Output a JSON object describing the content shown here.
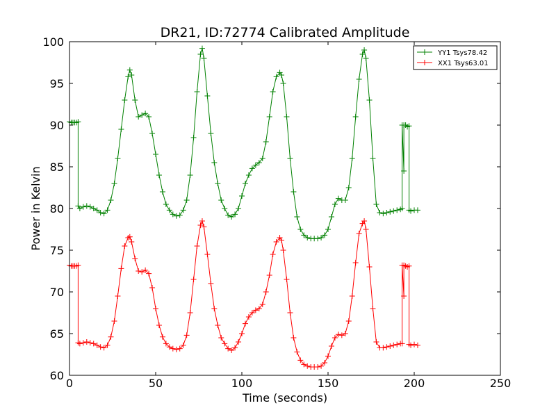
{
  "chart_data": {
    "type": "line",
    "title": "DR21, ID:72774 Calibrated Amplitude",
    "xlabel": "Time (seconds)",
    "ylabel": "Power in Kelvin",
    "xlim": [
      0,
      250
    ],
    "ylim": [
      60,
      100
    ],
    "xticks": [
      0,
      50,
      100,
      150,
      200,
      250
    ],
    "yticks": [
      60,
      65,
      70,
      75,
      80,
      85,
      90,
      95,
      100
    ],
    "grid": false,
    "legend_position": "top-right",
    "marker": "plus",
    "series": [
      {
        "name": "YY1 Tsys78.42",
        "color": "#008000",
        "x": [
          0,
          1,
          2,
          3,
          4,
          5,
          5,
          6,
          8,
          10,
          12,
          14,
          16,
          18,
          20,
          22,
          24,
          26,
          28,
          30,
          32,
          34,
          35,
          36,
          38,
          40,
          42,
          44,
          46,
          48,
          50,
          52,
          54,
          56,
          58,
          60,
          62,
          64,
          66,
          68,
          70,
          72,
          74,
          76,
          77,
          78,
          80,
          82,
          84,
          86,
          88,
          90,
          92,
          94,
          96,
          98,
          100,
          102,
          104,
          106,
          108,
          110,
          112,
          114,
          116,
          118,
          120,
          122,
          123,
          124,
          126,
          128,
          130,
          132,
          134,
          136,
          138,
          140,
          142,
          144,
          146,
          148,
          150,
          152,
          154,
          156,
          158,
          160,
          162,
          164,
          166,
          168,
          170,
          171,
          172,
          174,
          176,
          178,
          180,
          182,
          184,
          186,
          188,
          190,
          192,
          193,
          193,
          194,
          194,
          195,
          196,
          197,
          197,
          198,
          200,
          202
        ],
        "y": [
          90.4,
          90.3,
          90.3,
          90.3,
          90.3,
          90.4,
          80.3,
          80.0,
          80.2,
          80.3,
          80.2,
          80.0,
          79.8,
          79.5,
          79.4,
          79.8,
          81.0,
          83.0,
          86.0,
          89.5,
          93.0,
          95.8,
          96.6,
          96.0,
          93.0,
          91.0,
          91.2,
          91.4,
          91.0,
          89.0,
          86.5,
          84.0,
          82.0,
          80.5,
          79.8,
          79.3,
          79.1,
          79.2,
          79.8,
          81.0,
          84.0,
          88.5,
          94.0,
          98.5,
          99.2,
          98.0,
          93.5,
          89.0,
          85.5,
          83.0,
          81.0,
          80.0,
          79.2,
          79.0,
          79.3,
          80.0,
          81.5,
          83.0,
          84.0,
          84.8,
          85.2,
          85.5,
          86.0,
          88.0,
          91.0,
          94.0,
          95.8,
          96.3,
          96.0,
          95.0,
          91.0,
          86.0,
          82.0,
          79.0,
          77.5,
          76.8,
          76.5,
          76.4,
          76.4,
          76.4,
          76.5,
          76.8,
          77.5,
          79.0,
          80.5,
          81.2,
          81.0,
          81.0,
          82.5,
          86.0,
          91.0,
          95.5,
          98.5,
          99.0,
          98.0,
          93.0,
          86.0,
          80.5,
          79.5,
          79.4,
          79.5,
          79.6,
          79.7,
          79.8,
          79.9,
          80.0,
          90.0,
          84.5,
          90.0,
          90.0,
          89.8,
          89.9,
          79.8,
          79.7,
          79.8,
          79.8
        ]
      },
      {
        "name": "XX1 Tsys63.01",
        "color": "#ff0000",
        "x": [
          0,
          1,
          2,
          3,
          4,
          5,
          5,
          6,
          8,
          10,
          12,
          14,
          16,
          18,
          20,
          22,
          24,
          26,
          28,
          30,
          32,
          34,
          35,
          36,
          38,
          40,
          42,
          44,
          46,
          48,
          50,
          52,
          54,
          56,
          58,
          60,
          62,
          64,
          66,
          68,
          70,
          72,
          74,
          76,
          77,
          78,
          80,
          82,
          84,
          86,
          88,
          90,
          92,
          94,
          96,
          98,
          100,
          102,
          104,
          106,
          108,
          110,
          112,
          114,
          116,
          118,
          120,
          122,
          123,
          124,
          126,
          128,
          130,
          132,
          134,
          136,
          138,
          140,
          142,
          144,
          146,
          148,
          150,
          152,
          154,
          156,
          158,
          160,
          162,
          164,
          166,
          168,
          170,
          171,
          172,
          174,
          176,
          178,
          180,
          182,
          184,
          186,
          188,
          190,
          192,
          193,
          193,
          194,
          194,
          195,
          196,
          197,
          197,
          198,
          200,
          202
        ],
        "y": [
          73.2,
          73.1,
          73.1,
          73.1,
          73.1,
          73.2,
          63.9,
          63.8,
          63.9,
          64.0,
          63.9,
          63.8,
          63.6,
          63.4,
          63.3,
          63.6,
          64.6,
          66.5,
          69.5,
          72.8,
          75.5,
          76.5,
          76.6,
          76.0,
          74.0,
          72.5,
          72.4,
          72.6,
          72.2,
          70.5,
          68.0,
          66.0,
          64.6,
          63.8,
          63.4,
          63.2,
          63.1,
          63.2,
          63.6,
          64.8,
          67.5,
          71.5,
          75.5,
          78.0,
          78.5,
          77.8,
          74.5,
          71.0,
          68.0,
          66.0,
          64.5,
          63.8,
          63.2,
          63.0,
          63.3,
          64.0,
          65.0,
          66.2,
          67.0,
          67.5,
          67.8,
          68.0,
          68.5,
          70.0,
          72.0,
          74.5,
          76.0,
          76.5,
          76.2,
          75.0,
          71.5,
          67.5,
          64.5,
          62.8,
          61.8,
          61.3,
          61.1,
          61.0,
          61.0,
          61.0,
          61.1,
          61.5,
          62.3,
          63.5,
          64.5,
          64.9,
          64.8,
          65.0,
          66.5,
          69.5,
          73.5,
          77.0,
          78.2,
          78.5,
          77.5,
          73.0,
          68.0,
          64.0,
          63.3,
          63.3,
          63.4,
          63.5,
          63.6,
          63.7,
          63.8,
          63.8,
          73.2,
          69.5,
          73.2,
          73.1,
          73.0,
          73.1,
          63.7,
          63.6,
          63.7,
          63.6
        ]
      }
    ]
  }
}
